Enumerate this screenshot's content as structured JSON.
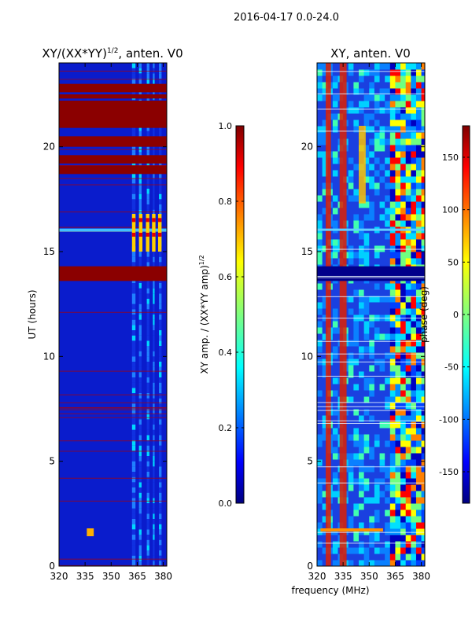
{
  "suptitle": "2016-04-17 0.0-24.0",
  "xlabel": "frequency (MHz)",
  "chart_data": [
    {
      "type": "heatmap",
      "title_main": "XY/(XX*YY)",
      "title_sup": "1/2",
      "title_rest": ", anten. V0",
      "ylabel": "UT (hours)",
      "xlim": [
        320,
        382
      ],
      "ylim": [
        0,
        24
      ],
      "xticks": [
        320,
        335,
        350,
        365,
        380
      ],
      "yticks": [
        0,
        5,
        10,
        15,
        20
      ],
      "colorbar": {
        "label_main": "XY amp. / (XX*YY amp)",
        "label_sup": "1/2",
        "range": [
          0.0,
          1.0
        ],
        "ticks": [
          "0.0",
          "0.2",
          "0.4",
          "0.6",
          "0.8",
          "1.0"
        ]
      },
      "saturated_bands_hours": [
        [
          13.6,
          14.3
        ],
        [
          18.7,
          19.1
        ],
        [
          19.2,
          19.6
        ],
        [
          20.0,
          20.5
        ],
        [
          20.9,
          22.2
        ],
        [
          22.3,
          22.5
        ],
        [
          22.6,
          23.0
        ]
      ],
      "feature_notes": "low background with brighter activity near 363-380 MHz; saturated red bands"
    },
    {
      "type": "heatmap",
      "title_main": "XY, anten. V0",
      "ylabel": "",
      "xlim": [
        320,
        382
      ],
      "ylim": [
        0,
        24
      ],
      "xticks": [
        320,
        335,
        350,
        365,
        380
      ],
      "yticks": [
        0,
        5,
        10,
        15,
        20
      ],
      "colorbar": {
        "label_main": "phase (deg)",
        "range": [
          -180,
          180
        ],
        "ticks": [
          "-150",
          "-100",
          "-50",
          "0",
          "50",
          "100",
          "150"
        ]
      },
      "dark_band_hours": [
        13.6,
        14.3
      ],
      "feature_notes": "phase map with red stripes near 325-340 MHz and mixed phases above 360 MHz"
    }
  ]
}
